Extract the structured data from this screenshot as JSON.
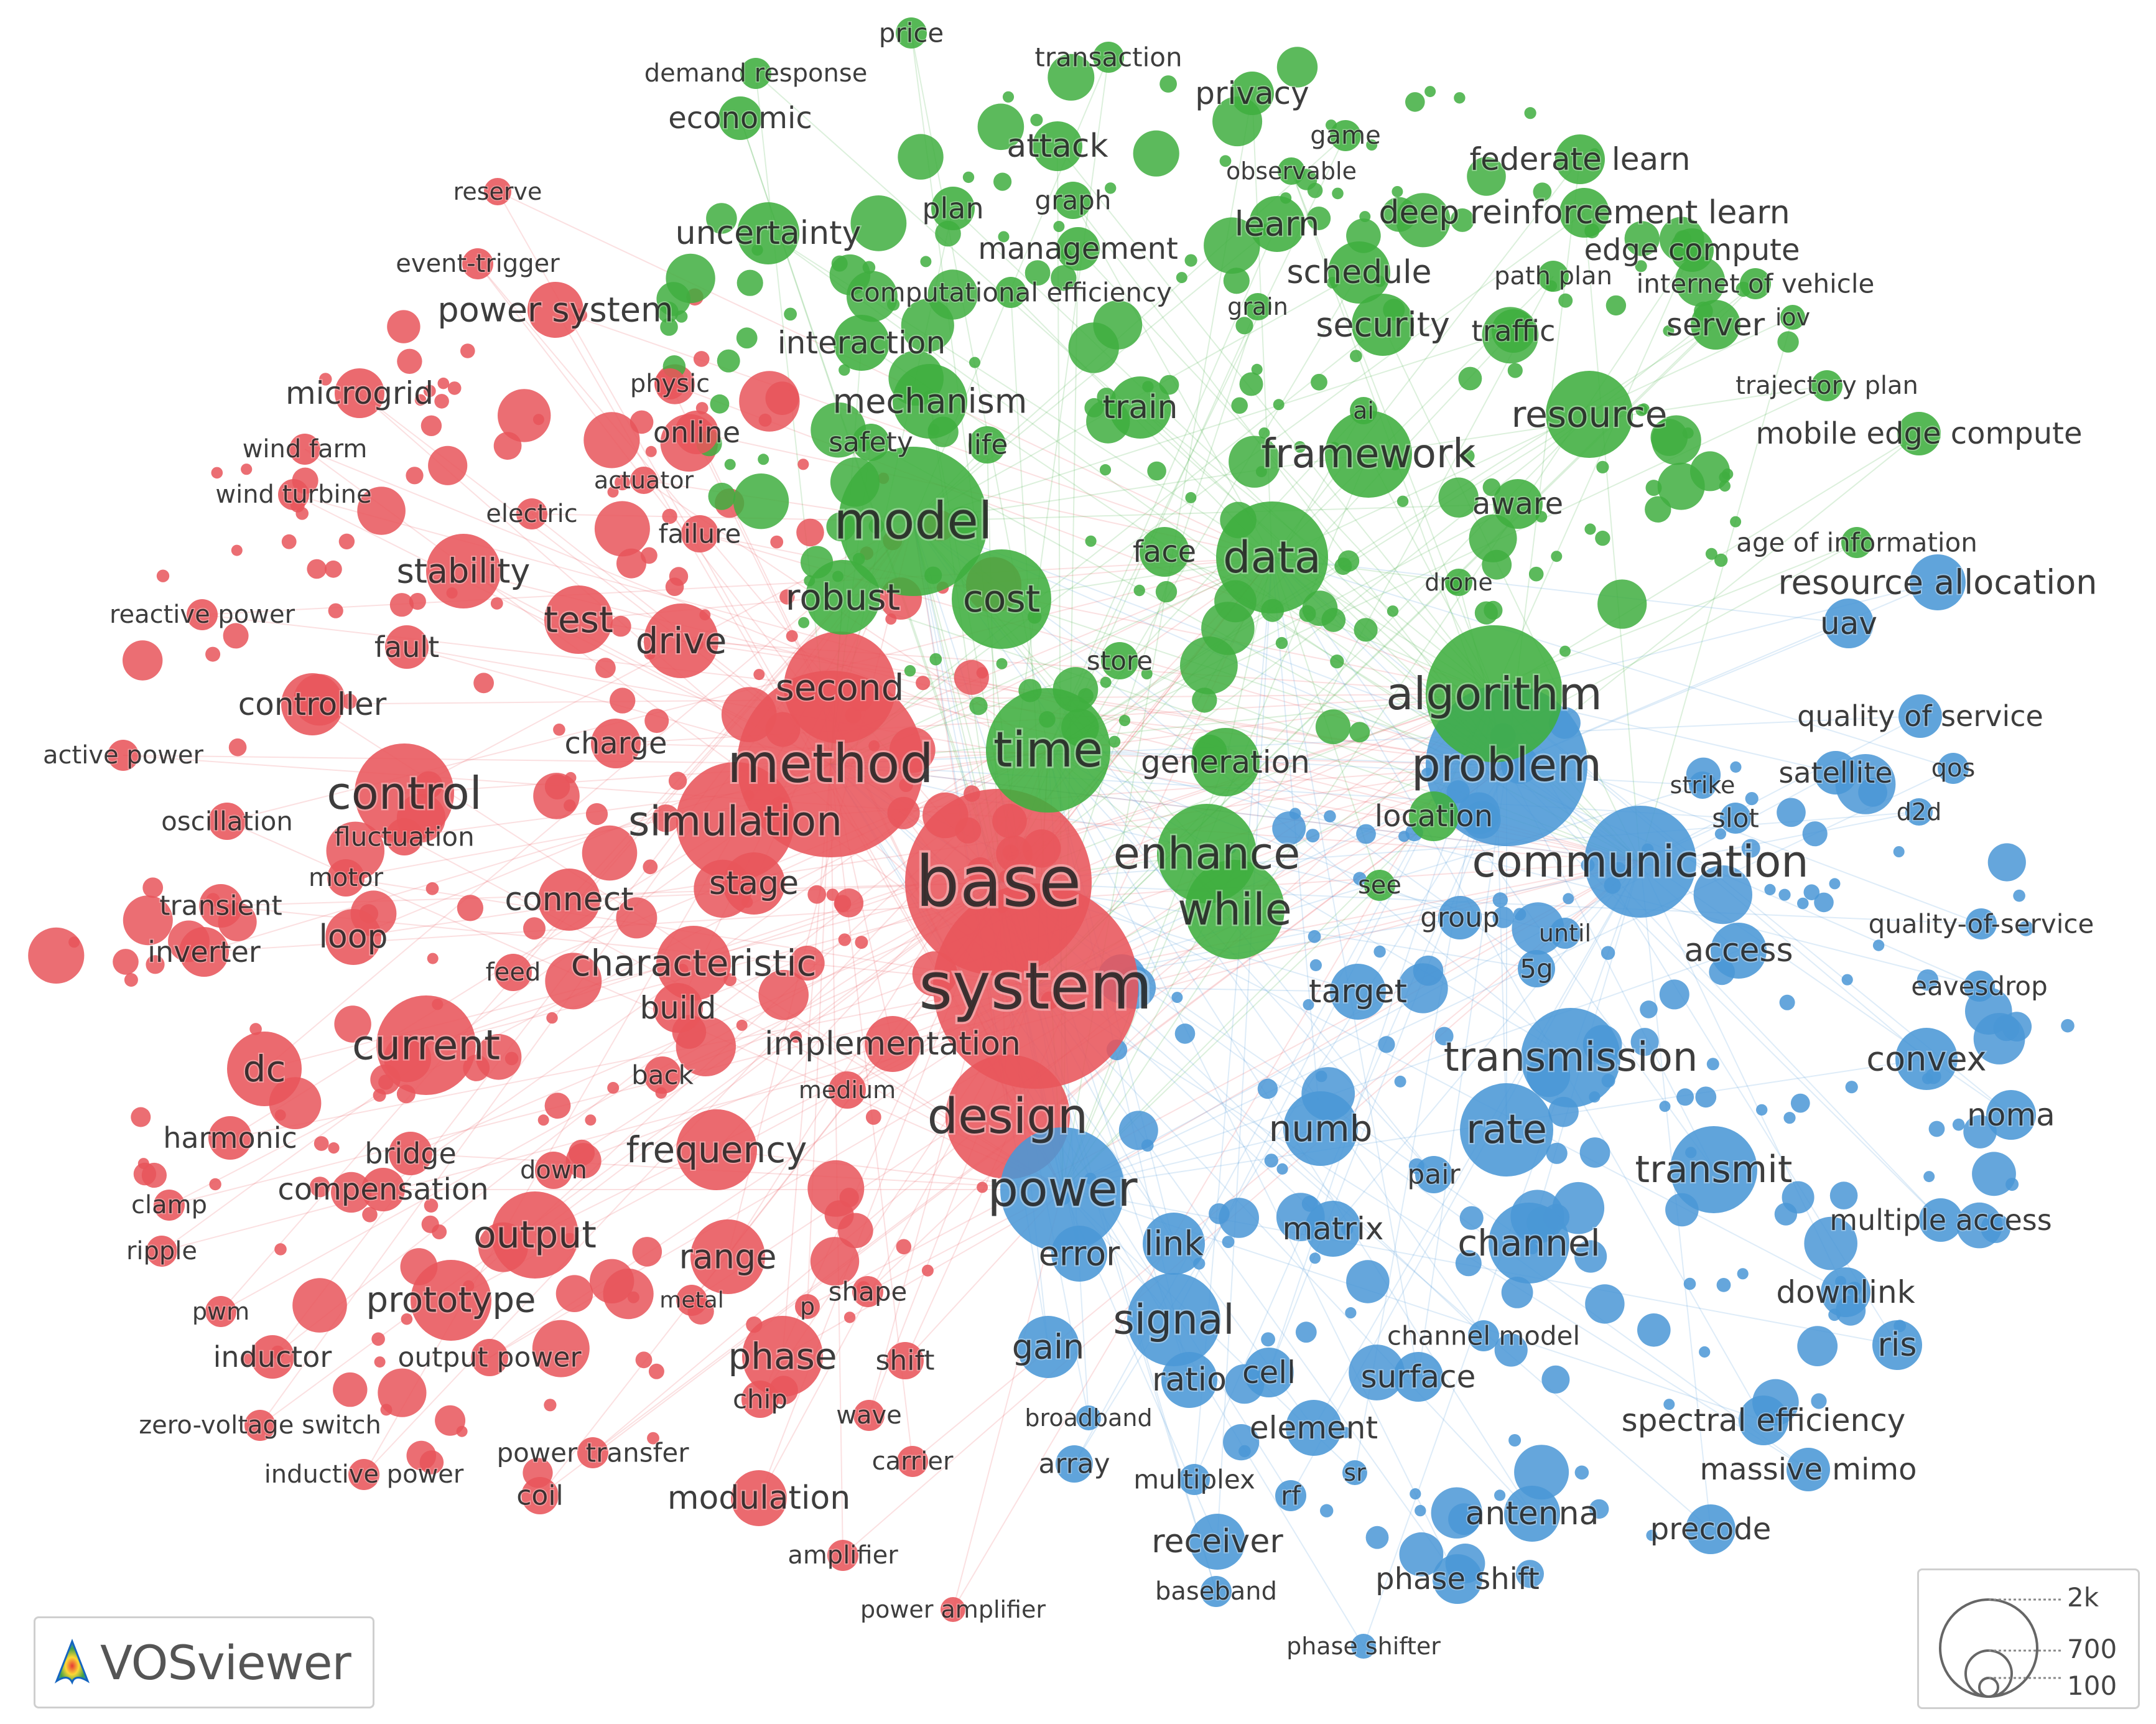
{
  "app": {
    "logo_text": "VOSviewer",
    "size_legend": [
      "2k",
      "700",
      "100"
    ]
  },
  "clusters": [
    {
      "id": "red",
      "color": "#e8555b"
    },
    {
      "id": "green",
      "color": "#3fae3f"
    },
    {
      "id": "blue",
      "color": "#4a97d6"
    }
  ],
  "items": [
    {
      "label": "base",
      "c": "red"
    },
    {
      "label": "system",
      "c": "red"
    },
    {
      "label": "method",
      "c": "red"
    },
    {
      "label": "design",
      "c": "red"
    },
    {
      "label": "control",
      "c": "red"
    },
    {
      "label": "current",
      "c": "red"
    },
    {
      "label": "simulation",
      "c": "red"
    },
    {
      "label": "second",
      "c": "red"
    },
    {
      "label": "characteristic",
      "c": "red"
    },
    {
      "label": "frequency",
      "c": "red"
    },
    {
      "label": "output",
      "c": "red"
    },
    {
      "label": "prototype",
      "c": "red"
    },
    {
      "label": "phase",
      "c": "red"
    },
    {
      "label": "dc",
      "c": "red"
    },
    {
      "label": "range",
      "c": "red"
    },
    {
      "label": "drive",
      "c": "red"
    },
    {
      "label": "test",
      "c": "red"
    },
    {
      "label": "stability",
      "c": "red"
    },
    {
      "label": "controller",
      "c": "red"
    },
    {
      "label": "power system",
      "c": "red"
    },
    {
      "label": "microgrid",
      "c": "red"
    },
    {
      "label": "modulation",
      "c": "red"
    },
    {
      "label": "implementation",
      "c": "red"
    },
    {
      "label": "connect",
      "c": "red"
    },
    {
      "label": "stage",
      "c": "red"
    },
    {
      "label": "charge",
      "c": "red"
    },
    {
      "label": "loop",
      "c": "red"
    },
    {
      "label": "inverter",
      "c": "red"
    },
    {
      "label": "fluctuation",
      "c": "red"
    },
    {
      "label": "oscillation",
      "c": "red"
    },
    {
      "label": "transient",
      "c": "red"
    },
    {
      "label": "motor",
      "c": "red"
    },
    {
      "label": "fault",
      "c": "red"
    },
    {
      "label": "build",
      "c": "red"
    },
    {
      "label": "feed",
      "c": "red"
    },
    {
      "label": "back",
      "c": "red"
    },
    {
      "label": "medium",
      "c": "red"
    },
    {
      "label": "harmonic",
      "c": "red"
    },
    {
      "label": "bridge",
      "c": "red"
    },
    {
      "label": "compensation",
      "c": "red"
    },
    {
      "label": "down",
      "c": "red"
    },
    {
      "label": "clamp",
      "c": "red"
    },
    {
      "label": "ripple",
      "c": "red"
    },
    {
      "label": "pwm",
      "c": "red"
    },
    {
      "label": "inductor",
      "c": "red"
    },
    {
      "label": "output power",
      "c": "red"
    },
    {
      "label": "metal",
      "c": "red"
    },
    {
      "label": "p",
      "c": "red"
    },
    {
      "label": "shape",
      "c": "red"
    },
    {
      "label": "shift",
      "c": "red"
    },
    {
      "label": "chip",
      "c": "red"
    },
    {
      "label": "wave",
      "c": "red"
    },
    {
      "label": "carrier",
      "c": "red"
    },
    {
      "label": "zero-voltage switch",
      "c": "red"
    },
    {
      "label": "inductive power",
      "c": "red"
    },
    {
      "label": "power transfer",
      "c": "red"
    },
    {
      "label": "coil",
      "c": "red"
    },
    {
      "label": "amplifier",
      "c": "red"
    },
    {
      "label": "power amplifier",
      "c": "red"
    },
    {
      "label": "reserve",
      "c": "red"
    },
    {
      "label": "event-trigger",
      "c": "red"
    },
    {
      "label": "wind farm",
      "c": "red"
    },
    {
      "label": "wind turbine",
      "c": "red"
    },
    {
      "label": "electric",
      "c": "red"
    },
    {
      "label": "actuator",
      "c": "red"
    },
    {
      "label": "failure",
      "c": "red"
    },
    {
      "label": "reactive power",
      "c": "red"
    },
    {
      "label": "active power",
      "c": "red"
    },
    {
      "label": "physic",
      "c": "red"
    },
    {
      "label": "online",
      "c": "red"
    },
    {
      "label": "model",
      "c": "green"
    },
    {
      "label": "time",
      "c": "green"
    },
    {
      "label": "algorithm",
      "c": "green"
    },
    {
      "label": "enhance",
      "c": "green"
    },
    {
      "label": "while",
      "c": "green"
    },
    {
      "label": "data",
      "c": "green"
    },
    {
      "label": "cost",
      "c": "green"
    },
    {
      "label": "robust",
      "c": "green"
    },
    {
      "label": "framework",
      "c": "green"
    },
    {
      "label": "generation",
      "c": "green"
    },
    {
      "label": "mechanism",
      "c": "green"
    },
    {
      "label": "resource",
      "c": "green"
    },
    {
      "label": "security",
      "c": "green"
    },
    {
      "label": "schedule",
      "c": "green"
    },
    {
      "label": "learn",
      "c": "green"
    },
    {
      "label": "train",
      "c": "green"
    },
    {
      "label": "uncertainty",
      "c": "green"
    },
    {
      "label": "interaction",
      "c": "green"
    },
    {
      "label": "attack",
      "c": "green"
    },
    {
      "label": "privacy",
      "c": "green"
    },
    {
      "label": "economic",
      "c": "green"
    },
    {
      "label": "price",
      "c": "green"
    },
    {
      "label": "demand response",
      "c": "green"
    },
    {
      "label": "transaction",
      "c": "green"
    },
    {
      "label": "game",
      "c": "green"
    },
    {
      "label": "observable",
      "c": "green"
    },
    {
      "label": "federate learn",
      "c": "green"
    },
    {
      "label": "deep reinforcement learn",
      "c": "green"
    },
    {
      "label": "edge compute",
      "c": "green"
    },
    {
      "label": "path plan",
      "c": "green"
    },
    {
      "label": "internet of vehicle",
      "c": "green"
    },
    {
      "label": "server",
      "c": "green"
    },
    {
      "label": "iov",
      "c": "green"
    },
    {
      "label": "traffic",
      "c": "green"
    },
    {
      "label": "trajectory plan",
      "c": "green"
    },
    {
      "label": "mobile edge compute",
      "c": "green"
    },
    {
      "label": "graph",
      "c": "green"
    },
    {
      "label": "plan",
      "c": "green"
    },
    {
      "label": "management",
      "c": "green"
    },
    {
      "label": "computational efficiency",
      "c": "green"
    },
    {
      "label": "grain",
      "c": "green"
    },
    {
      "label": "ai",
      "c": "green"
    },
    {
      "label": "safety",
      "c": "green"
    },
    {
      "label": "life",
      "c": "green"
    },
    {
      "label": "aware",
      "c": "green"
    },
    {
      "label": "face",
      "c": "green"
    },
    {
      "label": "drone",
      "c": "green"
    },
    {
      "label": "store",
      "c": "green"
    },
    {
      "label": "location",
      "c": "green"
    },
    {
      "label": "see",
      "c": "green"
    },
    {
      "label": "age of information",
      "c": "green"
    },
    {
      "label": "problem",
      "c": "blue"
    },
    {
      "label": "communication",
      "c": "blue"
    },
    {
      "label": "power",
      "c": "blue"
    },
    {
      "label": "transmission",
      "c": "blue"
    },
    {
      "label": "rate",
      "c": "blue"
    },
    {
      "label": "transmit",
      "c": "blue"
    },
    {
      "label": "channel",
      "c": "blue"
    },
    {
      "label": "signal",
      "c": "blue"
    },
    {
      "label": "numb",
      "c": "blue"
    },
    {
      "label": "error",
      "c": "blue"
    },
    {
      "label": "link",
      "c": "blue"
    },
    {
      "label": "matrix",
      "c": "blue"
    },
    {
      "label": "gain",
      "c": "blue"
    },
    {
      "label": "ratio",
      "c": "blue"
    },
    {
      "label": "cell",
      "c": "blue"
    },
    {
      "label": "surface",
      "c": "blue"
    },
    {
      "label": "element",
      "c": "blue"
    },
    {
      "label": "convex",
      "c": "blue"
    },
    {
      "label": "access",
      "c": "blue"
    },
    {
      "label": "target",
      "c": "blue"
    },
    {
      "label": "group",
      "c": "blue"
    },
    {
      "label": "until",
      "c": "blue"
    },
    {
      "label": "5g",
      "c": "blue"
    },
    {
      "label": "pair",
      "c": "blue"
    },
    {
      "label": "resource allocation",
      "c": "blue"
    },
    {
      "label": "uav",
      "c": "blue"
    },
    {
      "label": "quality of service",
      "c": "blue"
    },
    {
      "label": "satellite",
      "c": "blue"
    },
    {
      "label": "qos",
      "c": "blue"
    },
    {
      "label": "d2d",
      "c": "blue"
    },
    {
      "label": "strike",
      "c": "blue"
    },
    {
      "label": "slot",
      "c": "blue"
    },
    {
      "label": "quality-of-service",
      "c": "blue"
    },
    {
      "label": "eavesdrop",
      "c": "blue"
    },
    {
      "label": "noma",
      "c": "blue"
    },
    {
      "label": "multiple access",
      "c": "blue"
    },
    {
      "label": "downlink",
      "c": "blue"
    },
    {
      "label": "ris",
      "c": "blue"
    },
    {
      "label": "spectral efficiency",
      "c": "blue"
    },
    {
      "label": "massive mimo",
      "c": "blue"
    },
    {
      "label": "antenna",
      "c": "blue"
    },
    {
      "label": "precode",
      "c": "blue"
    },
    {
      "label": "channel model",
      "c": "blue"
    },
    {
      "label": "broadband",
      "c": "blue"
    },
    {
      "label": "array",
      "c": "blue"
    },
    {
      "label": "multiplex",
      "c": "blue"
    },
    {
      "label": "rf",
      "c": "blue"
    },
    {
      "label": "sr",
      "c": "blue"
    },
    {
      "label": "receiver",
      "c": "blue"
    },
    {
      "label": "baseband",
      "c": "blue"
    },
    {
      "label": "phase shift",
      "c": "blue"
    },
    {
      "label": "phase shifter",
      "c": "blue"
    }
  ]
}
